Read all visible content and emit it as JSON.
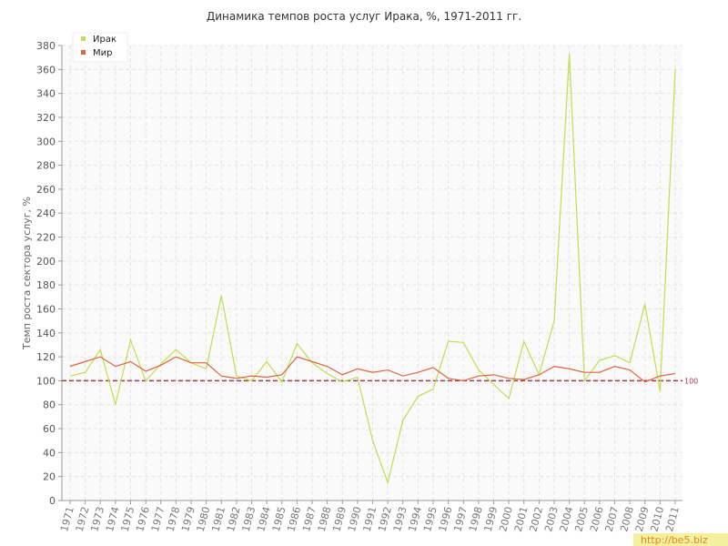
{
  "chart_data": {
    "type": "line",
    "title": "Динамика темпов роста услуг Ирака, %, 1971-2011 гг.",
    "y_label": "Темп роста сектора услуг, %",
    "categories": [
      "1971",
      "1972",
      "1973",
      "1974",
      "1975",
      "1976",
      "1977",
      "1978",
      "1979",
      "1980",
      "1981",
      "1982",
      "1983",
      "1984",
      "1985",
      "1986",
      "1987",
      "1988",
      "1989",
      "1990",
      "1991",
      "1992",
      "1993",
      "1994",
      "1995",
      "1996",
      "1997",
      "1998",
      "1999",
      "2000",
      "2001",
      "2002",
      "2003",
      "2004",
      "2005",
      "2006",
      "2007",
      "2008",
      "2009",
      "2010",
      "2011"
    ],
    "series": [
      {
        "name": "Ирак",
        "color": "#bddf50",
        "values": [
          104,
          107,
          126,
          80,
          134,
          100,
          114,
          126,
          115,
          110,
          171,
          104,
          100,
          116,
          99,
          131,
          115,
          106,
          99,
          103,
          50,
          15,
          67,
          87,
          93,
          133,
          132,
          109,
          97,
          85,
          133,
          105,
          150,
          373,
          100,
          117,
          121,
          115,
          164,
          91,
          360
        ]
      },
      {
        "name": "Мир",
        "color": "#e0643c",
        "values": [
          112,
          116,
          120,
          112,
          116,
          108,
          113,
          120,
          115,
          115,
          104,
          102,
          104,
          103,
          105,
          120,
          116,
          112,
          105,
          110,
          107,
          109,
          104,
          107,
          111,
          102,
          100,
          104,
          105,
          102,
          101,
          105,
          112,
          110,
          107,
          107,
          112,
          109,
          99,
          104,
          106
        ]
      }
    ],
    "reference_value": 100,
    "reference_color": "#9b3a4a",
    "ylim": [
      0,
      380
    ],
    "yticks": [
      0,
      20,
      40,
      60,
      80,
      100,
      120,
      140,
      160,
      180,
      200,
      220,
      240,
      260,
      280,
      300,
      320,
      340,
      360,
      380
    ],
    "grid": true,
    "legend": "top-left",
    "watermark": "http://be5.biz"
  }
}
